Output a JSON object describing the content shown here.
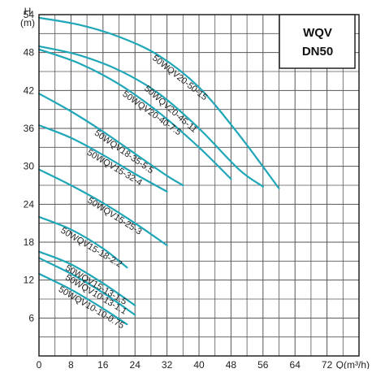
{
  "chart_data": {
    "type": "line",
    "title_lines": [
      "WQV",
      "DN50"
    ],
    "xlabel": "Q(m³/h)",
    "ylabel_lines": [
      "H",
      "(m)"
    ],
    "xlim": [
      0,
      80
    ],
    "ylim": [
      0,
      54
    ],
    "x_ticks": [
      0,
      8,
      16,
      24,
      32,
      40,
      48,
      56,
      64,
      72
    ],
    "x_tick_labels": [
      "0",
      "8",
      "16",
      "24",
      "32",
      "40",
      "48",
      "56",
      "64",
      "72"
    ],
    "y_ticks": [
      6,
      12,
      18,
      24,
      30,
      36,
      42,
      48,
      54
    ],
    "y_tick_labels": [
      "6",
      "12",
      "18",
      "24",
      "30",
      "36",
      "42",
      "48",
      "54"
    ],
    "grid": true,
    "colors": {
      "curve": "#1fa7b8",
      "grid": "#555555",
      "axis": "#222222"
    },
    "series": [
      {
        "name": "50WQV20-50-15",
        "x": [
          0,
          10,
          20,
          30,
          40,
          50,
          60
        ],
        "y": [
          53.5,
          52.4,
          50.5,
          47.5,
          42.5,
          35.0,
          26.5
        ]
      },
      {
        "name": "50WQV20-45-11",
        "x": [
          0,
          10,
          20,
          30,
          40,
          50,
          56
        ],
        "y": [
          49.0,
          47.6,
          45.2,
          41.5,
          36.0,
          29.5,
          26.8
        ]
      },
      {
        "name": "50WQV20-40-7.5",
        "x": [
          0,
          10,
          20,
          30,
          40,
          48
        ],
        "y": [
          48.5,
          46.3,
          43.0,
          38.5,
          33.0,
          28.0
        ]
      },
      {
        "name": "50WQV18-35-5.5",
        "x": [
          0,
          8,
          16,
          24,
          32,
          36
        ],
        "y": [
          41.5,
          38.7,
          35.5,
          32.0,
          28.5,
          27.0
        ]
      },
      {
        "name": "50WQV15-32-4",
        "x": [
          0,
          8,
          16,
          24,
          32
        ],
        "y": [
          36.5,
          34.5,
          31.8,
          28.8,
          26.0
        ]
      },
      {
        "name": "50WQV15-25-3",
        "x": [
          0,
          8,
          16,
          24,
          32
        ],
        "y": [
          29.5,
          27.0,
          24.2,
          21.0,
          17.5
        ]
      },
      {
        "name": "50WQV15-18-2.2",
        "x": [
          0,
          8,
          16,
          22
        ],
        "y": [
          22.0,
          20.0,
          17.0,
          14.0
        ]
      },
      {
        "name": "50WQV15-13-1.5",
        "x": [
          0,
          8,
          16,
          24
        ],
        "y": [
          16.5,
          14.5,
          11.5,
          8.0
        ]
      },
      {
        "name": "50WQV10-13-1.1",
        "x": [
          0,
          8,
          16,
          24
        ],
        "y": [
          15.5,
          13.0,
          10.0,
          6.5
        ]
      },
      {
        "name": "50WQV10-10-0.75",
        "x": [
          0,
          8,
          16,
          22
        ],
        "y": [
          13.0,
          10.5,
          7.5,
          5.0
        ]
      }
    ]
  }
}
